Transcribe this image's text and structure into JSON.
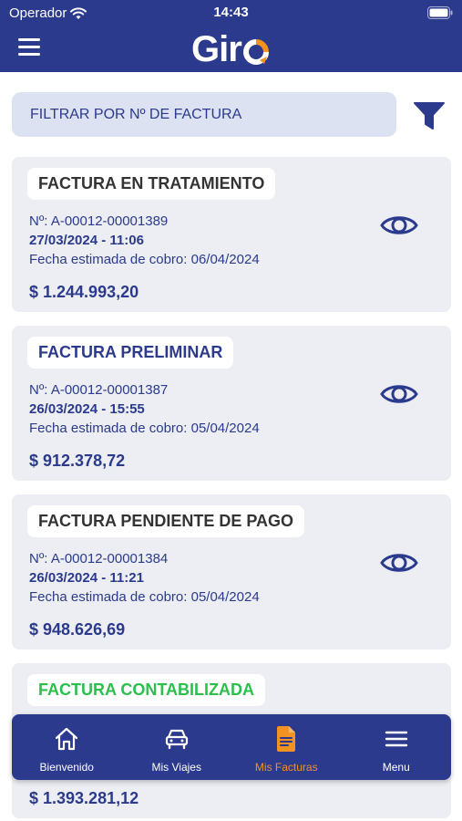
{
  "status_bar": {
    "carrier": "Operador",
    "time": "14:43"
  },
  "header": {
    "logo_text": "Gir"
  },
  "filter": {
    "placeholder": "FILTRAR POR Nº DE FACTURA"
  },
  "invoices": [
    {
      "status": "FACTURA EN TRATAMIENTO",
      "status_color": "#333333",
      "number": "Nº: A-00012-00001389",
      "datetime": "27/03/2024 - 11:06",
      "estimate": "Fecha estimada de cobro: 06/04/2024",
      "amount": "$ 1.244.993,20"
    },
    {
      "status": "FACTURA PRELIMINAR",
      "status_color": "#2b3a8c",
      "number": "Nº: A-00012-00001387",
      "datetime": "26/03/2024 - 15:55",
      "estimate": "Fecha estimada de cobro: 05/04/2024",
      "amount": "$ 912.378,72"
    },
    {
      "status": "FACTURA PENDIENTE DE PAGO",
      "status_color": "#333333",
      "number": "Nº: A-00012-00001384",
      "datetime": "26/03/2024 - 11:21",
      "estimate": "Fecha estimada de cobro: 05/04/2024",
      "amount": "$ 948.626,69"
    },
    {
      "status": "FACTURA CONTABILIZADA",
      "status_color": "#2bbf4c",
      "amount": "$ 1.393.281,12"
    }
  ],
  "bottom_nav": [
    {
      "label": "Bienvenido",
      "icon": "home-icon"
    },
    {
      "label": "Mis Viajes",
      "icon": "car-icon"
    },
    {
      "label": "Mis Facturas",
      "icon": "document-icon",
      "active": true
    },
    {
      "label": "Menu",
      "icon": "menu-icon"
    }
  ],
  "colors": {
    "primary": "#2b3a8c",
    "accent": "#f29222",
    "card_bg": "#eceef3",
    "input_bg": "#dde2f2",
    "success": "#2bbf4c"
  }
}
